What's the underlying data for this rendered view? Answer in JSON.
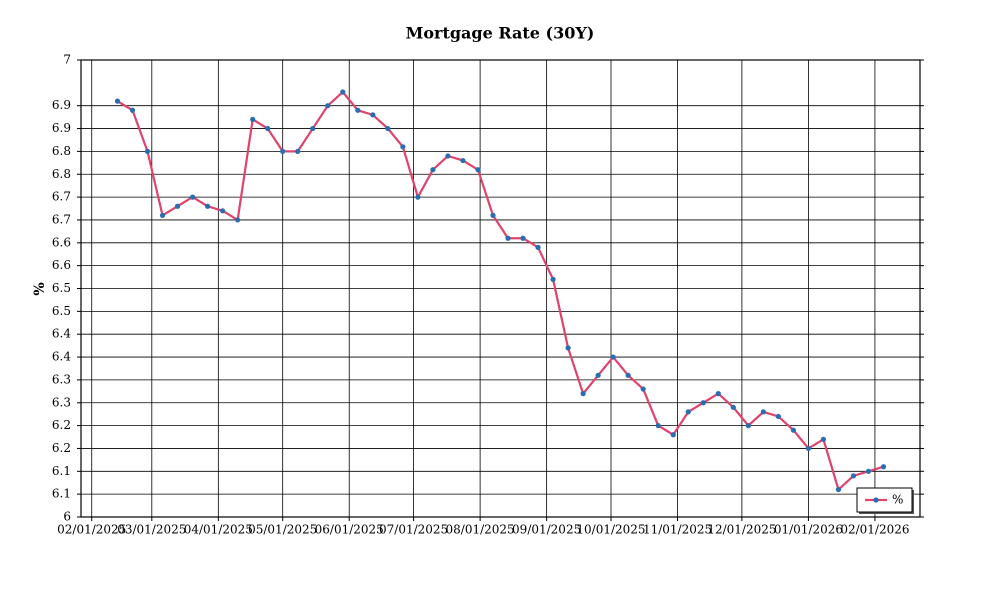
{
  "chart_data": {
    "type": "line",
    "title": "Mortgage Rate (30Y)",
    "ylabel": "%",
    "x": [
      "2025-02-13",
      "2025-02-20",
      "2025-02-27",
      "2025-03-06",
      "2025-03-13",
      "2025-03-20",
      "2025-03-27",
      "2025-04-03",
      "2025-04-10",
      "2025-04-17",
      "2025-04-24",
      "2025-05-01",
      "2025-05-08",
      "2025-05-15",
      "2025-05-22",
      "2025-05-29",
      "2025-06-05",
      "2025-06-12",
      "2025-06-19",
      "2025-06-26",
      "2025-07-03",
      "2025-07-10",
      "2025-07-17",
      "2025-07-24",
      "2025-07-31",
      "2025-08-07",
      "2025-08-14",
      "2025-08-21",
      "2025-08-28",
      "2025-09-04",
      "2025-09-11",
      "2025-09-18",
      "2025-09-25",
      "2025-10-02",
      "2025-10-09",
      "2025-10-16",
      "2025-10-23",
      "2025-10-30",
      "2025-11-06",
      "2025-11-13",
      "2025-11-20",
      "2025-11-27",
      "2025-12-04",
      "2025-12-11",
      "2025-12-18",
      "2025-12-25",
      "2026-01-01",
      "2026-01-08",
      "2026-01-15",
      "2026-01-22",
      "2026-01-29",
      "2026-02-05"
    ],
    "series": [
      {
        "name": "%",
        "color": "#e0436b",
        "marker_color": "#2a6db0",
        "values": [
          6.91,
          6.89,
          6.8,
          6.66,
          6.68,
          6.7,
          6.68,
          6.67,
          6.65,
          6.87,
          6.85,
          6.8,
          6.8,
          6.85,
          6.9,
          6.93,
          6.89,
          6.88,
          6.85,
          6.81,
          6.7,
          6.76,
          6.79,
          6.78,
          6.76,
          6.66,
          6.61,
          6.61,
          6.59,
          6.52,
          6.37,
          6.27,
          6.31,
          6.35,
          6.31,
          6.28,
          6.2,
          6.18,
          6.23,
          6.25,
          6.27,
          6.24,
          6.2,
          6.23,
          6.22,
          6.19,
          6.15,
          6.17,
          6.06,
          6.09,
          6.1,
          6.11
        ]
      }
    ],
    "xlim": [
      "2025-01-27",
      "2026-02-22"
    ],
    "xticks": [
      {
        "value": "2025-02-01",
        "label": "02/01/2025"
      },
      {
        "value": "2025-03-01",
        "label": "03/01/2025"
      },
      {
        "value": "2025-04-01",
        "label": "04/01/2025"
      },
      {
        "value": "2025-05-01",
        "label": "05/01/2025"
      },
      {
        "value": "2025-06-01",
        "label": "06/01/2025"
      },
      {
        "value": "2025-07-01",
        "label": "07/01/2025"
      },
      {
        "value": "2025-08-01",
        "label": "08/01/2025"
      },
      {
        "value": "2025-09-01",
        "label": "09/01/2025"
      },
      {
        "value": "2025-10-01",
        "label": "10/01/2025"
      },
      {
        "value": "2025-11-01",
        "label": "11/01/2025"
      },
      {
        "value": "2025-12-01",
        "label": "12/01/2025"
      },
      {
        "value": "2026-01-01",
        "label": "01/01/2026"
      },
      {
        "value": "2026-02-01",
        "label": "02/01/2026"
      }
    ],
    "ylim": [
      6,
      7
    ],
    "yticks": [
      6,
      {
        "value": 6.05,
        "label": "6.1"
      },
      6.1,
      {
        "value": 6.15,
        "label": "6.2"
      },
      6.2,
      {
        "value": 6.25,
        "label": "6.3"
      },
      6.3,
      {
        "value": 6.35,
        "label": "6.4"
      },
      6.4,
      {
        "value": 6.45,
        "label": "6.5"
      },
      6.5,
      {
        "value": 6.55,
        "label": "6.6"
      },
      6.6,
      {
        "value": 6.65,
        "label": "6.7"
      },
      6.7,
      {
        "value": 6.75,
        "label": "6.8"
      },
      6.8,
      {
        "value": 6.85,
        "label": "6.9"
      },
      6.9,
      7
    ],
    "grid": true,
    "legend": "lower right"
  }
}
